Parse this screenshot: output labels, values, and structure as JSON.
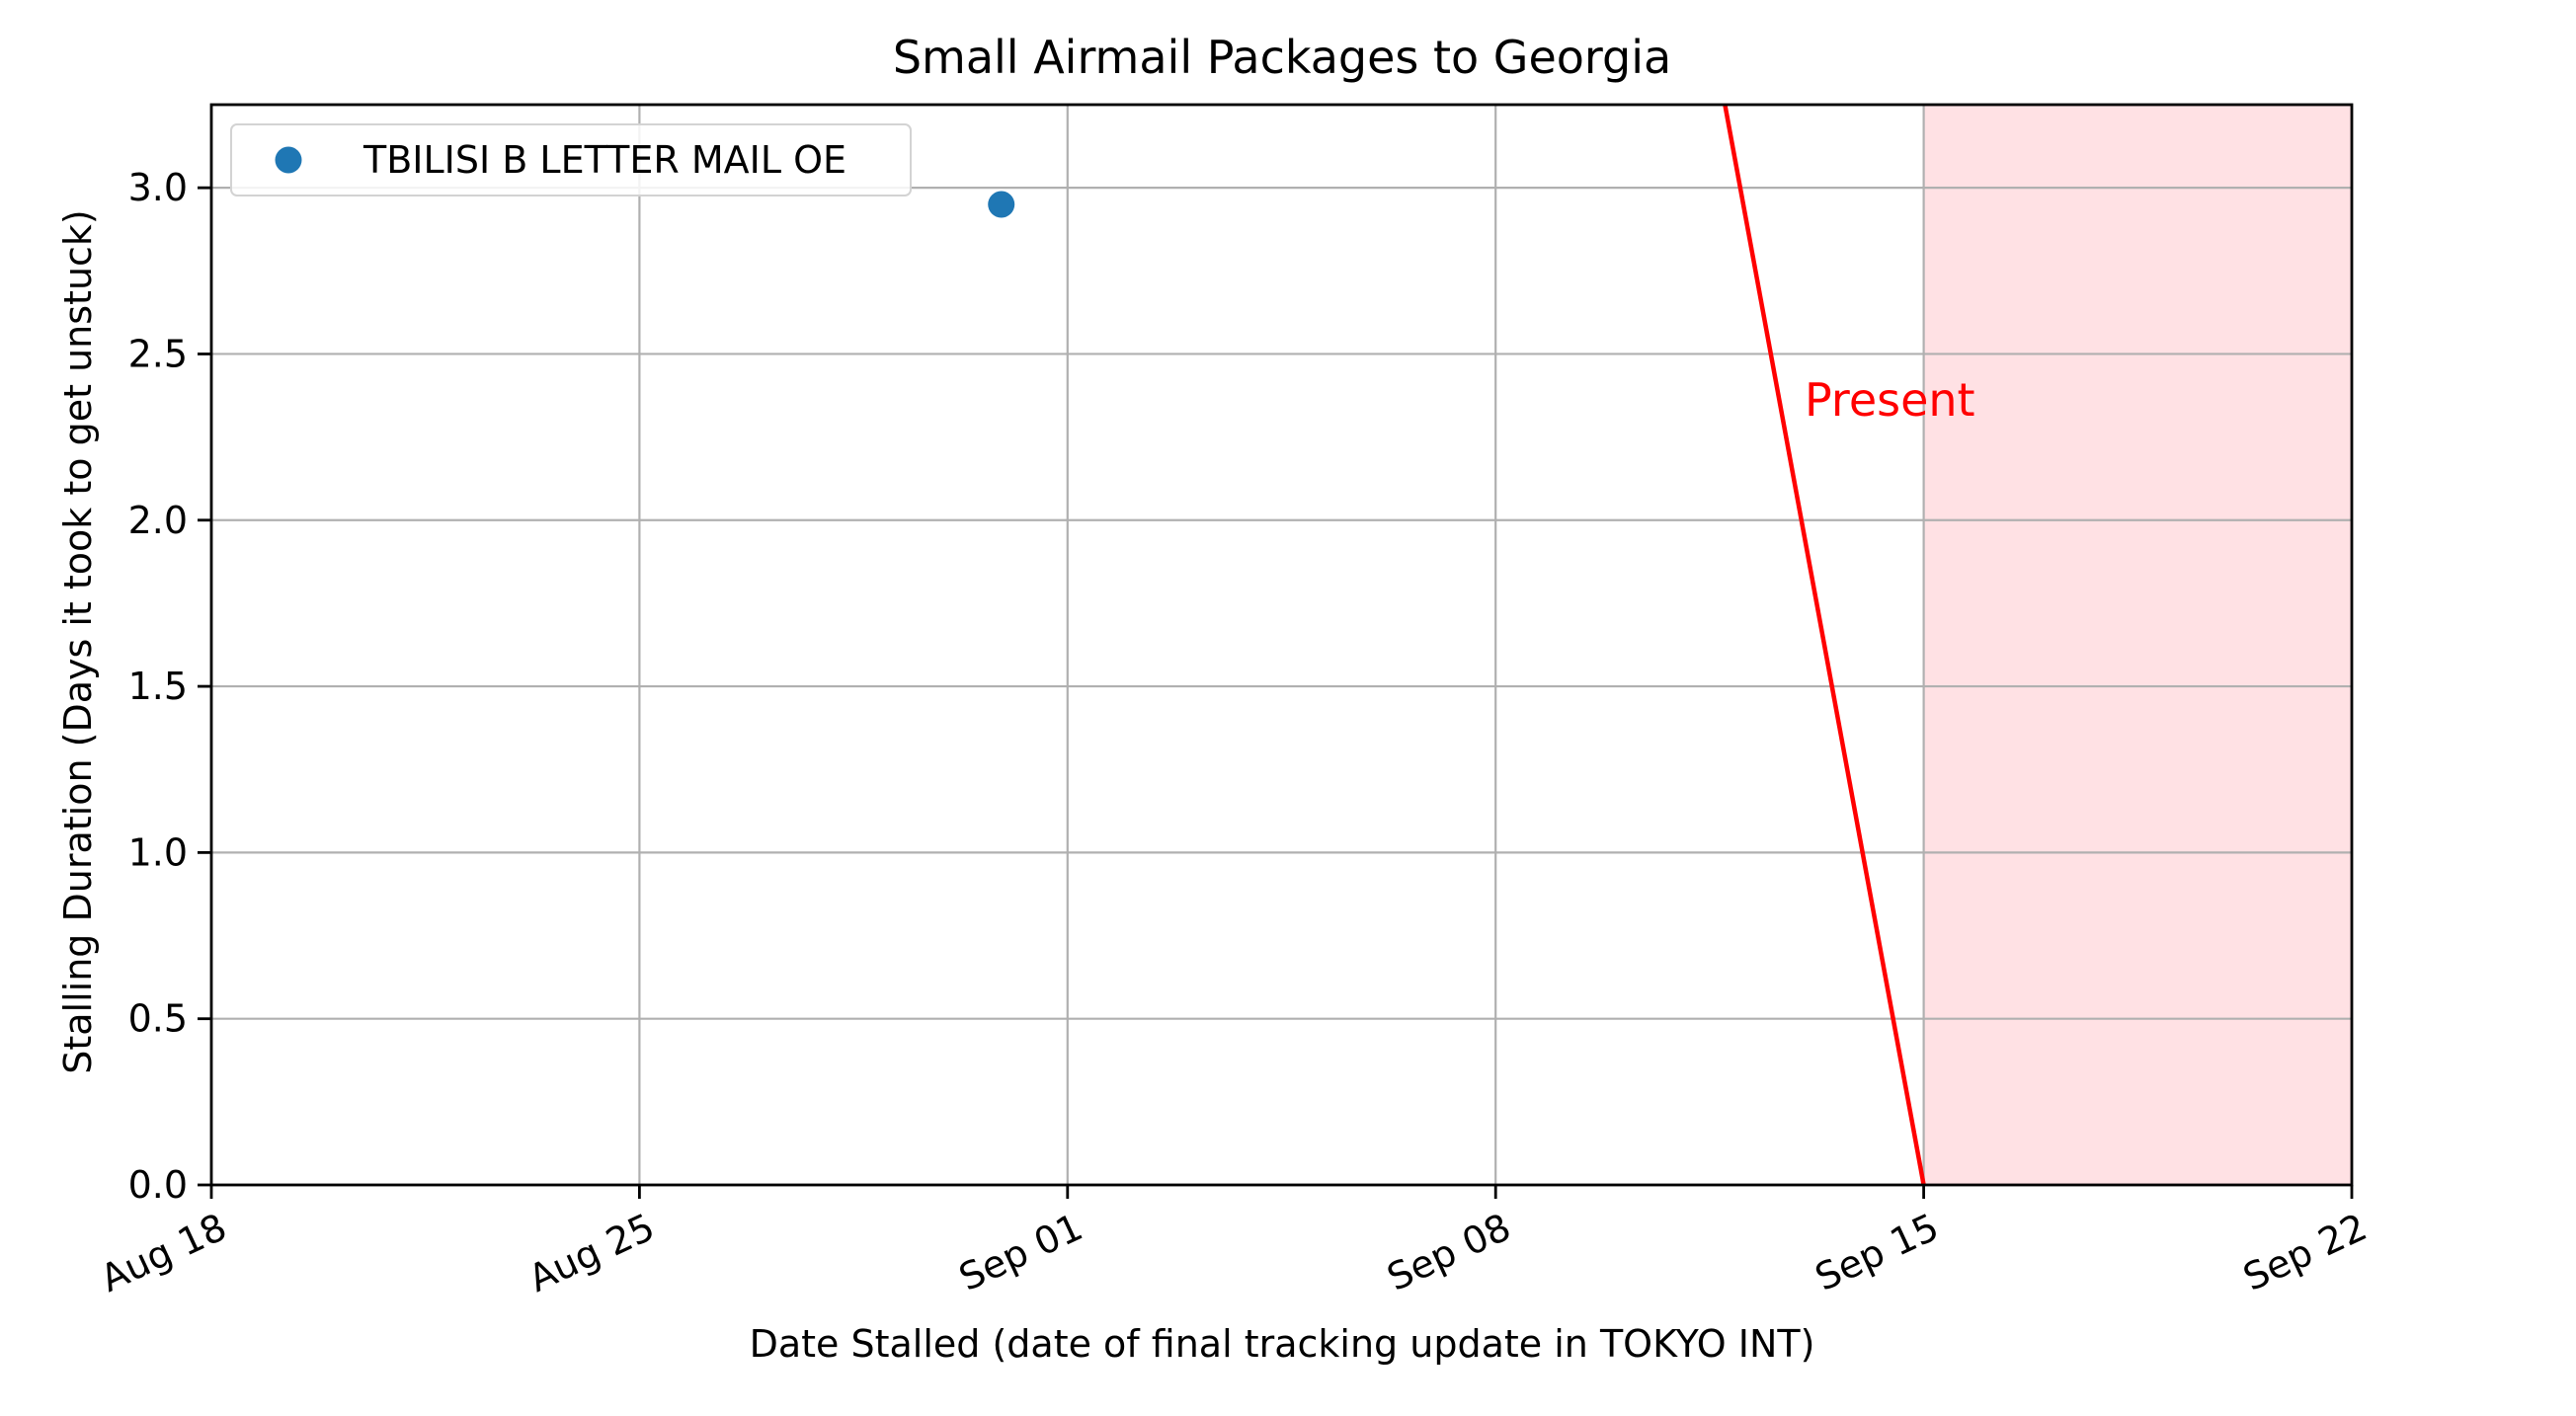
{
  "chart_data": {
    "type": "scatter",
    "title": "Small Airmail Packages to Georgia",
    "xlabel": "Date Stalled (date of final tracking update in TOKYO INT)",
    "ylabel": "Stalling Duration (Days it took to get unstuck)",
    "xlim": [
      "2023-08-18",
      "2023-09-22"
    ],
    "ylim": [
      0,
      3.25
    ],
    "x_tick_labels": [
      "Aug 18",
      "Aug 25",
      "Sep 01",
      "Sep 08",
      "Sep 15",
      "Sep 22"
    ],
    "x_tick_values": [
      "2023-08-18",
      "2023-08-25",
      "2023-09-01",
      "2023-09-08",
      "2023-09-15",
      "2023-09-22"
    ],
    "y_tick_labels": [
      "0.0",
      "0.5",
      "1.0",
      "1.5",
      "2.0",
      "2.5",
      "3.0"
    ],
    "y_tick_values": [
      0,
      0.5,
      1.0,
      1.5,
      2.0,
      2.5,
      3.0
    ],
    "grid": true,
    "legend_position": "top-left",
    "series": [
      {
        "name": "TBILISI B LETTER MAIL OE",
        "color": "#1f77b4",
        "points": [
          {
            "x": "2023-08-30T22:00",
            "y": 2.95
          }
        ]
      }
    ],
    "present_marker": {
      "label": "Present",
      "color": "#ff0000",
      "line_top": {
        "x": "2023-09-11T18:00",
        "y": 3.25
      },
      "line_bottom": {
        "x": "2023-09-15",
        "y": 0
      },
      "shaded_region": {
        "from": "2023-09-15",
        "to": "2023-09-22",
        "color": "#ffe1e4"
      }
    }
  }
}
